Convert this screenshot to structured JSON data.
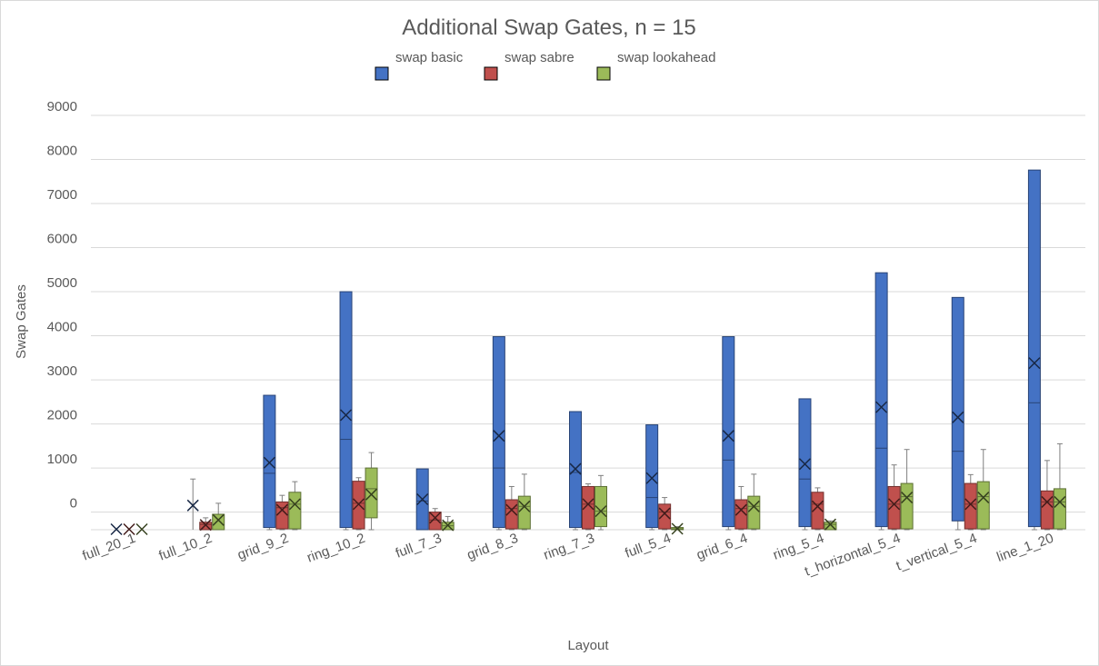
{
  "chart_data": {
    "type": "boxplot",
    "title": "Additional Swap Gates, n = 15",
    "xlabel": "Layout",
    "ylabel": "Swap Gates",
    "ylim": [
      -400,
      9000
    ],
    "yticks": [
      0,
      1000,
      2000,
      3000,
      4000,
      5000,
      6000,
      7000,
      8000,
      9000
    ],
    "legend_position": "top",
    "gridlines": true,
    "categories": [
      "full_20_1",
      "full_10_2",
      "grid_9_2",
      "ring_10_2",
      "full_7_3",
      "grid_8_3",
      "ring_7_3",
      "full_5_4",
      "grid_6_4",
      "ring_5_4",
      "t_horizontal_5_4",
      "t_vertical_5_4",
      "line_1_20"
    ],
    "series": [
      {
        "name": "swap basic",
        "color": "#4472c4",
        "boxes": [
          {
            "min": -400,
            "q1": -400,
            "median": -400,
            "q3": -400,
            "max": -400,
            "mean": -390
          },
          {
            "min": -400,
            "q1": -400,
            "median": -400,
            "q3": -400,
            "max": 750,
            "mean": 150
          },
          {
            "min": -400,
            "q1": -350,
            "median": 880,
            "q3": 2650,
            "max": 2650,
            "mean": 1120
          },
          {
            "min": -400,
            "q1": -350,
            "median": 1650,
            "q3": 5000,
            "max": 5000,
            "mean": 2200
          },
          {
            "min": -400,
            "q1": -400,
            "median": 250,
            "q3": 980,
            "max": 980,
            "mean": 290
          },
          {
            "min": -400,
            "q1": -350,
            "median": 1000,
            "q3": 3980,
            "max": 3980,
            "mean": 1730
          },
          {
            "min": -400,
            "q1": -350,
            "median": 900,
            "q3": 2280,
            "max": 2280,
            "mean": 980
          },
          {
            "min": -400,
            "q1": -350,
            "median": 330,
            "q3": 1980,
            "max": 1980,
            "mean": 770
          },
          {
            "min": -400,
            "q1": -330,
            "median": 1180,
            "q3": 3980,
            "max": 3980,
            "mean": 1730
          },
          {
            "min": -400,
            "q1": -330,
            "median": 750,
            "q3": 2570,
            "max": 2570,
            "mean": 1090
          },
          {
            "min": -400,
            "q1": -330,
            "median": 1450,
            "q3": 5430,
            "max": 5430,
            "mean": 2380
          },
          {
            "min": -400,
            "q1": -200,
            "median": 1380,
            "q3": 4870,
            "max": 4870,
            "mean": 2150
          },
          {
            "min": -400,
            "q1": -330,
            "median": 2480,
            "q3": 7760,
            "max": 7760,
            "mean": 3380
          }
        ]
      },
      {
        "name": "swap sabre",
        "color": "#c0504d",
        "boxes": [
          {
            "min": -400,
            "q1": -400,
            "median": -400,
            "q3": -400,
            "max": -400,
            "mean": -390
          },
          {
            "min": -400,
            "q1": -400,
            "median": -280,
            "q3": -230,
            "max": -130,
            "mean": -290
          },
          {
            "min": -400,
            "q1": -380,
            "median": 100,
            "q3": 230,
            "max": 380,
            "mean": 50
          },
          {
            "min": -400,
            "q1": -380,
            "median": 200,
            "q3": 700,
            "max": 780,
            "mean": 180
          },
          {
            "min": -400,
            "q1": -400,
            "median": -180,
            "q3": 0,
            "max": 80,
            "mean": -130
          },
          {
            "min": -400,
            "q1": -380,
            "median": 80,
            "q3": 280,
            "max": 580,
            "mean": 50
          },
          {
            "min": -400,
            "q1": -380,
            "median": 180,
            "q3": 580,
            "max": 640,
            "mean": 180
          },
          {
            "min": -400,
            "q1": -380,
            "median": 0,
            "q3": 180,
            "max": 330,
            "mean": -30
          },
          {
            "min": -400,
            "q1": -380,
            "median": 80,
            "q3": 280,
            "max": 580,
            "mean": 50
          },
          {
            "min": -400,
            "q1": -380,
            "median": 180,
            "q3": 450,
            "max": 550,
            "mean": 130
          },
          {
            "min": -400,
            "q1": -380,
            "median": 180,
            "q3": 580,
            "max": 1070,
            "mean": 180
          },
          {
            "min": -400,
            "q1": -380,
            "median": 180,
            "q3": 650,
            "max": 850,
            "mean": 180
          },
          {
            "min": -400,
            "q1": -380,
            "median": 230,
            "q3": 480,
            "max": 1170,
            "mean": 230
          }
        ]
      },
      {
        "name": "swap lookahead",
        "color": "#9bbb59",
        "boxes": [
          {
            "min": -400,
            "q1": -400,
            "median": -400,
            "q3": -400,
            "max": -400,
            "mean": -390
          },
          {
            "min": -400,
            "q1": -400,
            "median": -50,
            "q3": -50,
            "max": 200,
            "mean": -180
          },
          {
            "min": -400,
            "q1": -380,
            "median": 180,
            "q3": 450,
            "max": 690,
            "mean": 180
          },
          {
            "min": -400,
            "q1": -130,
            "median": 530,
            "q3": 1000,
            "max": 1350,
            "mean": 400
          },
          {
            "min": -400,
            "q1": -400,
            "median": -310,
            "q3": -230,
            "max": -100,
            "mean": -300
          },
          {
            "min": -400,
            "q1": -380,
            "median": 130,
            "q3": 360,
            "max": 860,
            "mean": 130
          },
          {
            "min": -400,
            "q1": -330,
            "median": 20,
            "q3": 580,
            "max": 830,
            "mean": 20
          },
          {
            "min": -400,
            "q1": -400,
            "median": -380,
            "q3": -350,
            "max": -330,
            "mean": -380
          },
          {
            "min": -400,
            "q1": -380,
            "median": 130,
            "q3": 360,
            "max": 860,
            "mean": 130
          },
          {
            "min": -400,
            "q1": -400,
            "median": -280,
            "q3": -230,
            "max": -200,
            "mean": -280
          },
          {
            "min": -400,
            "q1": -380,
            "median": 350,
            "q3": 650,
            "max": 1420,
            "mean": 330
          },
          {
            "min": -400,
            "q1": -380,
            "median": 350,
            "q3": 690,
            "max": 1420,
            "mean": 330
          },
          {
            "min": -400,
            "q1": -380,
            "median": 230,
            "q3": 530,
            "max": 1550,
            "mean": 230
          }
        ]
      }
    ]
  }
}
